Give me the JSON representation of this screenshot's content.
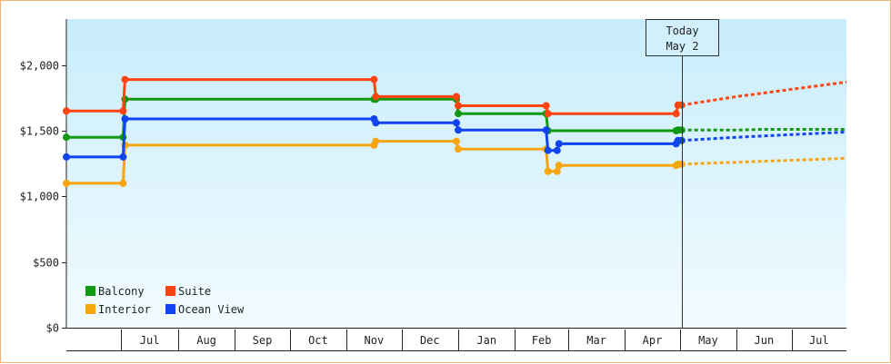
{
  "chart_data": {
    "type": "line",
    "y_ticks": [
      {
        "value": 0,
        "label": "$0"
      },
      {
        "value": 500,
        "label": "$500"
      },
      {
        "value": 1000,
        "label": "$1,000"
      },
      {
        "value": 1500,
        "label": "$1,500"
      },
      {
        "value": 2000,
        "label": "$2,000"
      }
    ],
    "ylim": [
      0,
      2350
    ],
    "x_range": [
      "2023-06-01",
      "2024-07-31"
    ],
    "months": [
      {
        "label": "Jul",
        "start": "2023-07-01"
      },
      {
        "label": "Aug",
        "start": "2023-08-01"
      },
      {
        "label": "Sep",
        "start": "2023-09-01"
      },
      {
        "label": "Oct",
        "start": "2023-10-01"
      },
      {
        "label": "Nov",
        "start": "2023-11-01"
      },
      {
        "label": "Dec",
        "start": "2023-12-01"
      },
      {
        "label": "Jan",
        "start": "2024-01-01"
      },
      {
        "label": "Feb",
        "start": "2024-02-01"
      },
      {
        "label": "Mar",
        "start": "2024-03-01"
      },
      {
        "label": "Apr",
        "start": "2024-04-01"
      },
      {
        "label": "May",
        "start": "2024-05-01"
      },
      {
        "label": "Jun",
        "start": "2024-06-01"
      },
      {
        "label": "Jul",
        "start": "2024-07-01"
      }
    ],
    "today": {
      "line1": "Today",
      "line2": "May 2",
      "date": "2024-05-02"
    },
    "legend_placement": "bottom-left",
    "series": [
      {
        "name": "Balcony",
        "color": "#119911",
        "points": [
          [
            "2023-06-01",
            1450
          ],
          [
            "2023-07-02",
            1450
          ],
          [
            "2023-07-03",
            1740
          ],
          [
            "2023-11-16",
            1740
          ],
          [
            "2023-11-17",
            1740
          ],
          [
            "2023-12-31",
            1740
          ],
          [
            "2024-01-01",
            1630
          ],
          [
            "2024-02-18",
            1630
          ],
          [
            "2024-02-19",
            1500
          ],
          [
            "2024-04-29",
            1500
          ],
          [
            "2024-04-30",
            1505
          ],
          [
            "2024-05-02",
            1505
          ]
        ],
        "forecast": [
          [
            "2024-05-02",
            1505
          ],
          [
            "2024-06-01",
            1505
          ],
          [
            "2024-06-15",
            1510
          ],
          [
            "2024-07-31",
            1510
          ]
        ]
      },
      {
        "name": "Suite",
        "color": "#ff4411",
        "points": [
          [
            "2023-06-01",
            1650
          ],
          [
            "2023-07-02",
            1650
          ],
          [
            "2023-07-03",
            1890
          ],
          [
            "2023-11-16",
            1890
          ],
          [
            "2023-11-17",
            1760
          ],
          [
            "2023-12-31",
            1760
          ],
          [
            "2024-01-01",
            1690
          ],
          [
            "2024-02-18",
            1690
          ],
          [
            "2024-02-19",
            1630
          ],
          [
            "2024-04-29",
            1630
          ],
          [
            "2024-04-30",
            1695
          ],
          [
            "2024-05-02",
            1695
          ]
        ],
        "forecast": [
          [
            "2024-05-02",
            1695
          ],
          [
            "2024-06-01",
            1760
          ],
          [
            "2024-07-31",
            1870
          ]
        ]
      },
      {
        "name": "Interior",
        "color": "#f7a511",
        "points": [
          [
            "2023-06-01",
            1100
          ],
          [
            "2023-07-02",
            1100
          ],
          [
            "2023-07-03",
            1390
          ],
          [
            "2023-11-16",
            1390
          ],
          [
            "2023-11-17",
            1420
          ],
          [
            "2023-12-31",
            1420
          ],
          [
            "2024-01-01",
            1360
          ],
          [
            "2024-02-18",
            1360
          ],
          [
            "2024-02-19",
            1190
          ],
          [
            "2024-02-24",
            1190
          ],
          [
            "2024-02-25",
            1235
          ],
          [
            "2024-04-29",
            1235
          ],
          [
            "2024-04-30",
            1245
          ],
          [
            "2024-05-02",
            1245
          ]
        ],
        "forecast": [
          [
            "2024-05-02",
            1245
          ],
          [
            "2024-06-01",
            1260
          ],
          [
            "2024-07-31",
            1290
          ]
        ]
      },
      {
        "name": "Ocean View",
        "color": "#1144ee",
        "points": [
          [
            "2023-06-01",
            1300
          ],
          [
            "2023-07-02",
            1300
          ],
          [
            "2023-07-03",
            1590
          ],
          [
            "2023-11-16",
            1590
          ],
          [
            "2023-11-17",
            1560
          ],
          [
            "2023-12-31",
            1560
          ],
          [
            "2024-01-01",
            1505
          ],
          [
            "2024-02-18",
            1505
          ],
          [
            "2024-02-19",
            1350
          ],
          [
            "2024-02-24",
            1350
          ],
          [
            "2024-02-25",
            1400
          ],
          [
            "2024-04-29",
            1400
          ],
          [
            "2024-04-30",
            1425
          ],
          [
            "2024-05-02",
            1425
          ]
        ],
        "forecast": [
          [
            "2024-05-02",
            1425
          ],
          [
            "2024-06-01",
            1450
          ],
          [
            "2024-07-31",
            1490
          ]
        ]
      }
    ]
  }
}
